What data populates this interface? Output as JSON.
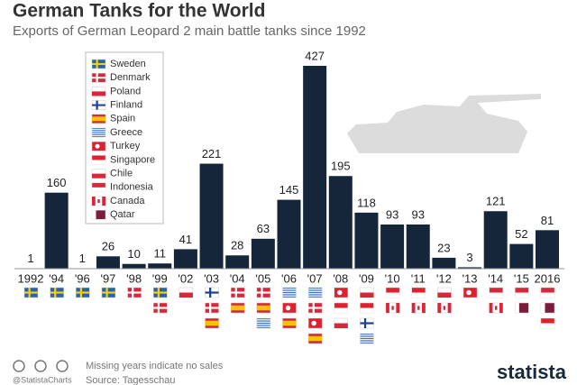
{
  "chart_data": {
    "type": "bar",
    "title": "German Tanks for the World",
    "subtitle": "Exports of German Leopard 2 main battle tanks since 1992",
    "categories": [
      "1992",
      "'94",
      "'96",
      "'97",
      "'98",
      "'99",
      "'02",
      "'03",
      "'04",
      "'05",
      "'06",
      "'07",
      "'08",
      "'09",
      "'10",
      "'11",
      "'12",
      "'13",
      "'14",
      "'15",
      "2016"
    ],
    "values": [
      1,
      160,
      1,
      26,
      10,
      11,
      41,
      221,
      28,
      63,
      145,
      427,
      195,
      118,
      93,
      93,
      23,
      3,
      121,
      52,
      81
    ],
    "color": "#15263a",
    "countries": [
      {
        "name": "Sweden",
        "colors": [
          "#2a64a6",
          "#f7cd1e"
        ],
        "pattern": "cross"
      },
      {
        "name": "Denmark",
        "colors": [
          "#d8263a",
          "#ffffff"
        ],
        "pattern": "cross"
      },
      {
        "name": "Poland",
        "colors": [
          "#ffffff",
          "#d8263a"
        ],
        "pattern": "halves"
      },
      {
        "name": "Finland",
        "colors": [
          "#ffffff",
          "#1c3f8f"
        ],
        "pattern": "cross"
      },
      {
        "name": "Spain",
        "colors": [
          "#d8263a",
          "#f5c400"
        ],
        "pattern": "band"
      },
      {
        "name": "Greece",
        "colors": [
          "#3a6fc4",
          "#ffffff"
        ],
        "pattern": "stripes"
      },
      {
        "name": "Turkey",
        "colors": [
          "#e0202f",
          "#ffffff"
        ],
        "pattern": "dot"
      },
      {
        "name": "Singapore",
        "colors": [
          "#e0202f",
          "#ffffff"
        ],
        "pattern": "halves"
      },
      {
        "name": "Chile",
        "colors": [
          "#ffffff",
          "#d8263a"
        ],
        "pattern": "halves"
      },
      {
        "name": "Indonesia",
        "colors": [
          "#d8263a",
          "#ffffff"
        ],
        "pattern": "halves"
      },
      {
        "name": "Canada",
        "colors": [
          "#ffffff",
          "#d8263a"
        ],
        "pattern": "sides"
      },
      {
        "name": "Qatar",
        "colors": [
          "#7a1c3a",
          "#ffffff"
        ],
        "pattern": "hoist"
      }
    ],
    "buyers": [
      [
        "Sweden"
      ],
      [
        "Sweden"
      ],
      [
        "Sweden"
      ],
      [
        "Sweden"
      ],
      [
        "Denmark"
      ],
      [
        "Sweden",
        "Denmark"
      ],
      [
        "Poland"
      ],
      [
        "Finland",
        "Denmark",
        "Spain"
      ],
      [
        "Denmark",
        "Spain"
      ],
      [
        "Denmark",
        "Spain",
        "Greece"
      ],
      [
        "Greece",
        "Turkey",
        "Spain"
      ],
      [
        "Greece",
        "Denmark",
        "Turkey",
        "Spain"
      ],
      [
        "Turkey",
        "Singapore",
        "Chile"
      ],
      [
        "Chile",
        "Singapore",
        "Finland",
        "Greece"
      ],
      [
        "Singapore",
        "Canada"
      ],
      [
        "Singapore",
        "Canada"
      ],
      [
        "Chile",
        "Canada"
      ],
      [
        "Turkey"
      ],
      [
        "Indonesia",
        "Canada"
      ],
      [
        "Indonesia",
        "Qatar"
      ],
      [
        "Indonesia",
        "Qatar",
        "Singapore"
      ]
    ]
  },
  "footer": {
    "note": "Missing years indicate no sales",
    "source": "Source: Tagesschau",
    "handle": "@StatistaCharts",
    "brand": "statista"
  }
}
